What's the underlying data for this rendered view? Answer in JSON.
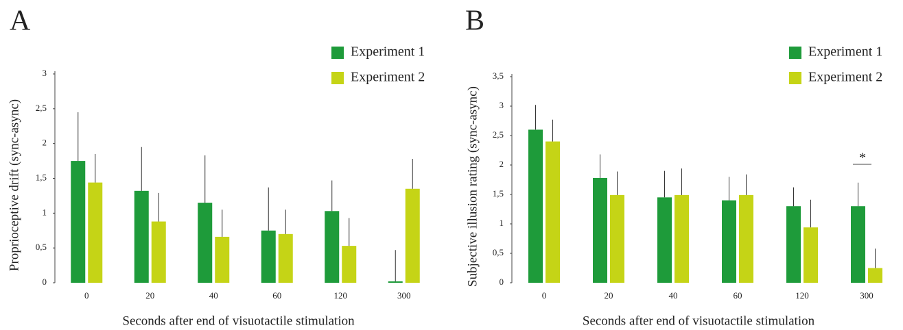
{
  "chart_data": [
    {
      "type": "bar",
      "panel_label": "A",
      "x_label": "Seconds after end of visuotactile stimulation",
      "y_label": "Proprioceptive drift (sync-async)",
      "categories": [
        "0",
        "20",
        "40",
        "60",
        "120",
        "300"
      ],
      "series": [
        {
          "name": "Experiment 1",
          "color": "#1e9b3a",
          "values": [
            1.75,
            1.32,
            1.15,
            0.75,
            1.03,
            0.02
          ],
          "errors": [
            0.7,
            0.63,
            0.68,
            0.62,
            0.44,
            0.45
          ]
        },
        {
          "name": "Experiment 2",
          "color": "#c5d416",
          "values": [
            1.44,
            0.88,
            0.66,
            0.7,
            0.53,
            1.35
          ],
          "errors": [
            0.41,
            0.41,
            0.39,
            0.35,
            0.4,
            0.43
          ]
        }
      ],
      "ylim": [
        0,
        3
      ],
      "yticks": [
        0,
        {
          "value": 0.5,
          "label": "0,5"
        },
        1,
        {
          "value": 1.5,
          "label": "1,5"
        },
        2,
        {
          "value": 2.5,
          "label": "2,5"
        },
        3
      ],
      "legend": "top-right"
    },
    {
      "type": "bar",
      "panel_label": "B",
      "x_label": "Seconds after end of visuotactile stimulation",
      "y_label": "Subjective illusion rating (sync-async)",
      "categories": [
        "0",
        "20",
        "40",
        "60",
        "120",
        "300"
      ],
      "series": [
        {
          "name": "Experiment 1",
          "color": "#1e9b3a",
          "values": [
            2.6,
            1.78,
            1.45,
            1.4,
            1.3,
            1.3
          ],
          "errors": [
            0.42,
            0.4,
            0.45,
            0.4,
            0.32,
            0.4
          ]
        },
        {
          "name": "Experiment 2",
          "color": "#c5d416",
          "values": [
            2.4,
            1.49,
            1.49,
            1.49,
            0.94,
            0.25
          ],
          "errors": [
            0.37,
            0.4,
            0.45,
            0.35,
            0.47,
            0.33
          ]
        }
      ],
      "ylim": [
        0,
        3.5
      ],
      "yticks": [
        0,
        {
          "value": 0.5,
          "label": "0,5"
        },
        1,
        {
          "value": 1.5,
          "label": "1,5"
        },
        2,
        {
          "value": 2.5,
          "label": "2,5"
        },
        3,
        {
          "value": 3.5,
          "label": "3,5"
        }
      ],
      "legend": "top-right",
      "annotation": "*"
    }
  ]
}
